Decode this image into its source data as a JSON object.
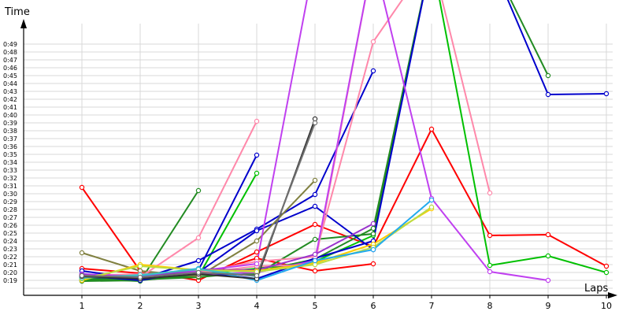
{
  "chart_data": {
    "type": "line",
    "xlabel": "Laps",
    "ylabel": "Time",
    "x": [
      1,
      2,
      3,
      4,
      5,
      6,
      7,
      8,
      9,
      10
    ],
    "xlim": [
      0.05,
      10.05
    ],
    "ylim": [
      17.5,
      51
    ],
    "yticks": [
      19,
      20,
      21,
      22,
      23,
      24,
      25,
      26,
      27,
      28,
      29,
      30,
      31,
      32,
      33,
      34,
      35,
      36,
      37,
      38,
      39,
      40,
      41,
      42,
      43,
      44,
      45,
      46,
      47,
      48,
      49
    ],
    "ytick_labels": [
      "0:19",
      "0:20",
      "0:21",
      "0:22",
      "0:23",
      "0:24",
      "0:25",
      "0:26",
      "0:27",
      "0:28",
      "0:29",
      "0:30",
      "0:31",
      "0:32",
      "0:33",
      "0:34",
      "0:35",
      "0:36",
      "0:37",
      "0:38",
      "0:39",
      "0:40",
      "0:41",
      "0:42",
      "0:43",
      "0:44",
      "0:45",
      "0:46",
      "0:47",
      "0:48",
      "0:49"
    ],
    "grid": true,
    "series": [
      {
        "color": "#ff0000",
        "values": [
          30.8,
          20.2,
          19.0,
          22.6,
          26.1,
          23.3,
          38.2,
          24.7,
          24.8,
          20.8
        ]
      },
      {
        "color": "#ff0000",
        "values": [
          20.5,
          19.9,
          19.6,
          21.8,
          20.2,
          21.1,
          null,
          null,
          null,
          null
        ]
      },
      {
        "color": "#00c000",
        "values": [
          19.0,
          19.3,
          19.5,
          32.6,
          null,
          null,
          null,
          null,
          null,
          null
        ]
      },
      {
        "color": "#00c000",
        "values": [
          19.1,
          19.2,
          19.8,
          20.5,
          21.4,
          24.7,
          60.0,
          20.9,
          22.1,
          20.0
        ]
      },
      {
        "color": "#228b22",
        "values": [
          19.2,
          18.9,
          30.4,
          null,
          null,
          null,
          null,
          null,
          null,
          null
        ]
      },
      {
        "color": "#228b22",
        "values": [
          18.9,
          19.0,
          19.7,
          19.8,
          24.2,
          24.9,
          60.0,
          null,
          null,
          null
        ]
      },
      {
        "color": "#228b22",
        "values": [
          19.3,
          19.1,
          19.4,
          20.1,
          21.7,
          25.6,
          60.0,
          60.0,
          45.0,
          null
        ]
      },
      {
        "color": "#0000cc",
        "values": [
          20.2,
          19.2,
          21.5,
          25.5,
          29.9,
          45.6,
          null,
          null,
          null,
          null
        ]
      },
      {
        "color": "#0000cc",
        "values": [
          19.6,
          19.0,
          20.3,
          34.9,
          null,
          null,
          null,
          null,
          null,
          null
        ]
      },
      {
        "color": "#0000cc",
        "values": [
          19.8,
          19.5,
          20.0,
          25.3,
          28.4,
          22.9,
          null,
          null,
          null,
          null
        ]
      },
      {
        "color": "#0000cc",
        "values": [
          19.4,
          19.3,
          20.1,
          19.2,
          21.8,
          24.0,
          60.0,
          60.0,
          42.6,
          42.7
        ]
      },
      {
        "color": "#808040",
        "values": [
          22.5,
          20.2,
          19.5,
          24.0,
          31.7,
          null,
          null,
          null,
          null,
          null
        ]
      },
      {
        "color": "#ff88aa",
        "values": [
          19.5,
          19.4,
          24.4,
          39.2,
          null,
          null,
          null,
          null,
          null,
          null
        ]
      },
      {
        "color": "#ff88aa",
        "values": [
          19.7,
          19.6,
          19.9,
          20.8,
          21.0,
          60.0,
          60.0,
          30.1,
          null,
          null
        ]
      },
      {
        "color": "#ff88aa",
        "values": [
          19.6,
          19.8,
          20.0,
          21.4,
          22.0,
          49.3,
          60.0,
          null,
          null,
          null
        ]
      },
      {
        "color": "#c040f0",
        "values": [
          19.8,
          19.5,
          20.2,
          21.1,
          60.0,
          null,
          null,
          null,
          null,
          null
        ]
      },
      {
        "color": "#c040f0",
        "values": [
          19.5,
          19.4,
          19.8,
          20.0,
          21.5,
          60.0,
          29.4,
          20.1,
          19.0,
          null
        ]
      },
      {
        "color": "#9933cc",
        "values": [
          19.7,
          19.3,
          20.4,
          20.3,
          22.3,
          26.2,
          null,
          null,
          null,
          null
        ]
      },
      {
        "color": "#ffcc00",
        "values": [
          19.0,
          21.0,
          20.3,
          20.2,
          21.2,
          23.6,
          28.1,
          null,
          null,
          null
        ]
      },
      {
        "color": "#bbdd44",
        "values": [
          19.2,
          20.8,
          20.3,
          20.1,
          21.0,
          23.2,
          28.3,
          null,
          null,
          null
        ]
      },
      {
        "color": "#22aaee",
        "values": [
          19.4,
          19.6,
          20.5,
          19.0,
          21.5,
          22.9,
          29.2,
          null,
          null,
          null
        ]
      },
      {
        "color": "#40c0c0",
        "values": [
          19.3,
          19.7,
          20.4,
          19.5,
          null,
          null,
          null,
          null,
          null,
          null
        ]
      },
      {
        "color": "#333333",
        "values": [
          19.5,
          19.2,
          19.8,
          19.2,
          39.5,
          null,
          null,
          null,
          null,
          null
        ]
      },
      {
        "color": "#707070",
        "values": [
          19.6,
          19.4,
          20.0,
          19.6,
          39.0,
          null,
          null,
          null,
          null,
          null
        ]
      }
    ]
  }
}
